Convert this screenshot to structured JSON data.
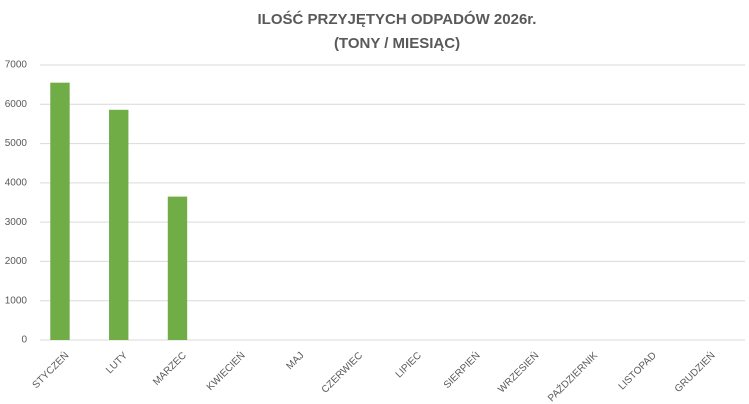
{
  "chart_data": {
    "type": "bar",
    "title": "ILOŚĆ PRZYJĘTYCH ODPADÓW 2026r.",
    "subtitle": "(TONY / MIESIĄC)",
    "categories": [
      "STYCZEŃ",
      "LUTY",
      "MARZEC",
      "KWIECIEŃ",
      "MAJ",
      "CZERWIEC",
      "LIPIEC",
      "SIERPIEŃ",
      "WRZESIEŃ",
      "PAŹDZIERNIK",
      "LISTOPAD",
      "GRUDZIEŃ"
    ],
    "values": [
      6550,
      5860,
      3650,
      null,
      null,
      null,
      null,
      null,
      null,
      null,
      null,
      null
    ],
    "color": "#70ad47",
    "ylim": [
      0,
      7000
    ],
    "yticks": [
      0,
      1000,
      2000,
      3000,
      4000,
      5000,
      6000,
      7000
    ],
    "grid": true
  }
}
